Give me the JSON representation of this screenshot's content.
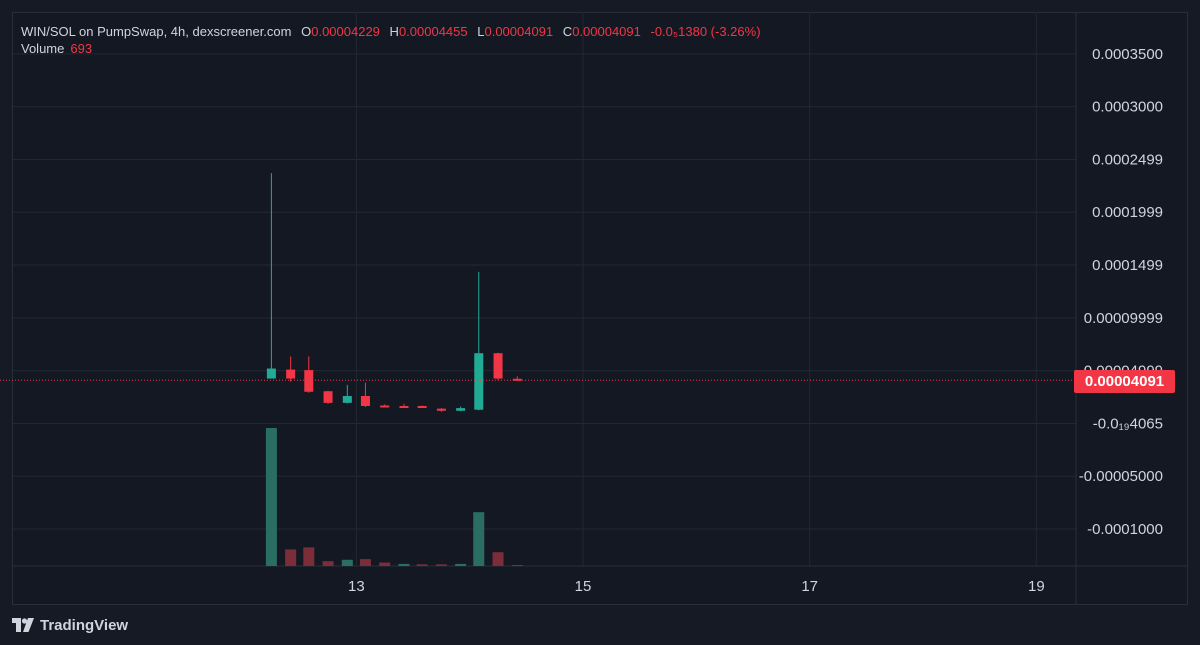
{
  "legend": {
    "symbol": "WIN/SOL on PumpSwap, 4h, dexscreener.com",
    "open_label": "O",
    "open": "0.00004229",
    "high_label": "H",
    "high": "0.00004455",
    "low_label": "L",
    "low": "0.00004091",
    "close_label": "C",
    "close": "0.00004091",
    "change": "-0.0₅1380 (-3.26%)",
    "volume_label": "Volume",
    "volume": "693"
  },
  "price_tag": "0.00004091",
  "brand": {
    "name": "TradingView",
    "icon": "tradingview-logo-icon"
  },
  "colors": {
    "up": "#22ab94",
    "down": "#f23645",
    "up_volume": "#2a6e63",
    "down_volume": "#7c2d3a"
  },
  "chart_data": {
    "type": "candlestick",
    "price_ticks": [
      {
        "value": 0.00035,
        "label": "0.0003500"
      },
      {
        "value": 0.0003,
        "label": "0.0003000"
      },
      {
        "value": 0.00025,
        "label": "0.0002499"
      },
      {
        "value": 0.0002,
        "label": "0.0001999"
      },
      {
        "value": 0.00015,
        "label": "0.0001499"
      },
      {
        "value": 0.0001,
        "label": "0.00009999"
      },
      {
        "value": 5e-05,
        "label": "0.00004999"
      },
      {
        "value": 0.0,
        "label": "-0.0₁₉4065"
      },
      {
        "value": -5e-05,
        "label": "-0.00005000"
      },
      {
        "value": -0.0001,
        "label": "-0.0001000"
      }
    ],
    "x_ticks": [
      {
        "day": 13,
        "label": "13"
      },
      {
        "day": 15,
        "label": "15"
      },
      {
        "day": 17,
        "label": "17"
      },
      {
        "day": 19,
        "label": "19"
      }
    ],
    "ylim": [
      -0.000135,
      0.000365
    ],
    "xlim": [
      9.97,
      19.35
    ],
    "last_price": 4.091e-05,
    "candles": [
      {
        "t": 12.25,
        "o": 4.25e-05,
        "h": 0.000237,
        "l": 4.45e-05,
        "c": 5.2e-05
      },
      {
        "t": 12.42,
        "o": 5.1e-05,
        "h": 6.35e-05,
        "l": 3.95e-05,
        "c": 4.25e-05
      },
      {
        "t": 12.58,
        "o": 5.05e-05,
        "h": 6.35e-05,
        "l": 2.9e-05,
        "c": 3e-05
      },
      {
        "t": 12.75,
        "o": 3.05e-05,
        "h": 3.1e-05,
        "l": 1.85e-05,
        "c": 1.95e-05
      },
      {
        "t": 12.92,
        "o": 1.95e-05,
        "h": 3.65e-05,
        "l": 1.9e-05,
        "c": 2.6e-05
      },
      {
        "t": 13.08,
        "o": 2.6e-05,
        "h": 3.85e-05,
        "l": 1.55e-05,
        "c": 1.65e-05
      },
      {
        "t": 13.25,
        "o": 1.7e-05,
        "h": 1.8e-05,
        "l": 1.55e-05,
        "c": 1.6e-05
      },
      {
        "t": 13.42,
        "o": 1.65e-05,
        "h": 1.85e-05,
        "l": 1.5e-05,
        "c": 1.6e-05
      },
      {
        "t": 13.58,
        "o": 1.65e-05,
        "h": 1.7e-05,
        "l": 1.5e-05,
        "c": 1.55e-05
      },
      {
        "t": 13.75,
        "o": 1.4e-05,
        "h": 1.45e-05,
        "l": 1.1e-05,
        "c": 1.2e-05
      },
      {
        "t": 13.92,
        "o": 1.2e-05,
        "h": 1.6e-05,
        "l": 1.15e-05,
        "c": 1.45e-05
      },
      {
        "t": 14.08,
        "o": 1.3e-05,
        "h": 0.0001435,
        "l": 1.25e-05,
        "c": 6.65e-05
      },
      {
        "t": 14.25,
        "o": 6.65e-05,
        "h": 6.7e-05,
        "l": 4.1e-05,
        "c": 4.25e-05
      },
      {
        "t": 14.42,
        "o": 4.229e-05,
        "h": 4.455e-05,
        "l": 4.091e-05,
        "c": 4.091e-05
      }
    ],
    "volume": [
      {
        "t": 12.25,
        "v": 100,
        "dir": "up"
      },
      {
        "t": 12.42,
        "v": 12,
        "dir": "down"
      },
      {
        "t": 12.58,
        "v": 13.5,
        "dir": "down"
      },
      {
        "t": 12.75,
        "v": 3.5,
        "dir": "down"
      },
      {
        "t": 12.92,
        "v": 4.5,
        "dir": "up"
      },
      {
        "t": 13.08,
        "v": 5,
        "dir": "down"
      },
      {
        "t": 13.25,
        "v": 2.5,
        "dir": "down"
      },
      {
        "t": 13.42,
        "v": 1.5,
        "dir": "up"
      },
      {
        "t": 13.58,
        "v": 1.2,
        "dir": "down"
      },
      {
        "t": 13.75,
        "v": 1.2,
        "dir": "down"
      },
      {
        "t": 13.92,
        "v": 1.5,
        "dir": "up"
      },
      {
        "t": 14.08,
        "v": 39,
        "dir": "up"
      },
      {
        "t": 14.25,
        "v": 10,
        "dir": "down"
      },
      {
        "t": 14.42,
        "v": 0.5,
        "dir": "down"
      }
    ]
  }
}
